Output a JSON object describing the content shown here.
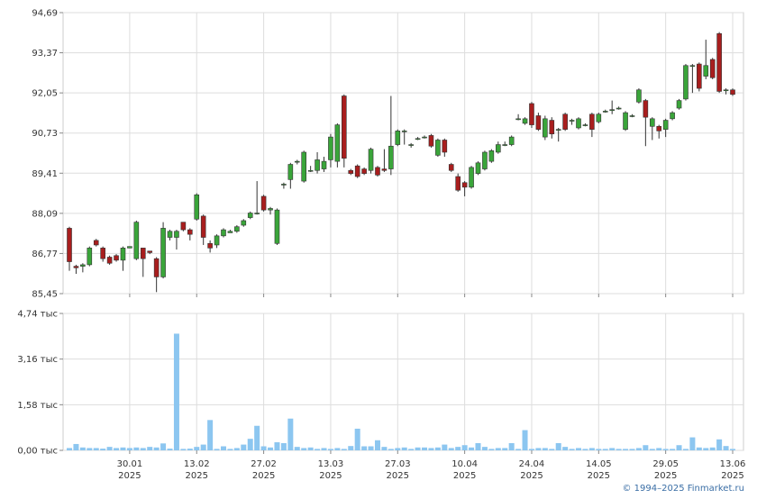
{
  "chart_data": [
    {
      "type": "candlestick",
      "categories": [
        null,
        null,
        null,
        null,
        null,
        null,
        null,
        null,
        null,
        "30.01\n2025",
        null,
        null,
        null,
        null,
        null,
        null,
        null,
        null,
        null,
        "13.02\n2025",
        null,
        null,
        null,
        null,
        null,
        null,
        null,
        null,
        null,
        "27.02\n2025",
        null,
        null,
        null,
        null,
        null,
        null,
        null,
        null,
        null,
        "13.03\n2025",
        null,
        null,
        null,
        null,
        null,
        null,
        null,
        null,
        null,
        "27.03\n2025",
        null,
        null,
        null,
        null,
        null,
        null,
        null,
        null,
        null,
        "10.04\n2025",
        null,
        null,
        null,
        null,
        null,
        null,
        null,
        null,
        null,
        "24.04\n2025",
        null,
        null,
        null,
        null,
        null,
        null,
        null,
        null,
        null,
        "14.05\n2025",
        null,
        null,
        null,
        null,
        null,
        null,
        null,
        null,
        null,
        "29.05\n2025",
        null,
        null,
        null,
        null,
        null,
        null,
        null,
        null,
        null,
        "13.06\n2025"
      ],
      "open": [
        87.6,
        86.35,
        86.35,
        86.4,
        87.2,
        86.95,
        86.65,
        86.7,
        86.55,
        86.95,
        86.6,
        86.95,
        86.85,
        86.6,
        86.0,
        87.3,
        87.3,
        87.8,
        87.55,
        87.9,
        88.0,
        87.1,
        87.05,
        87.35,
        87.45,
        87.5,
        87.7,
        87.95,
        88.1,
        88.65,
        88.2,
        87.1,
        89.05,
        89.2,
        89.8,
        89.15,
        89.5,
        89.5,
        89.55,
        89.85,
        89.8,
        91.95,
        89.5,
        89.65,
        89.55,
        89.5,
        89.6,
        89.55,
        89.55,
        90.35,
        90.8,
        90.35,
        90.55,
        90.6,
        90.65,
        90.0,
        90.5,
        89.7,
        89.3,
        89.1,
        88.95,
        89.4,
        89.55,
        89.8,
        90.1,
        90.35,
        90.35,
        91.2,
        91.05,
        91.7,
        91.3,
        90.6,
        91.15,
        90.85,
        91.35,
        91.15,
        90.9,
        91.0,
        91.35,
        91.1,
        91.45,
        91.5,
        91.55,
        90.85,
        91.3,
        91.75,
        91.8,
        90.95,
        90.95,
        90.85,
        91.2,
        91.55,
        91.85,
        92.95,
        93.0,
        92.6,
        93.15,
        94.0,
        92.15,
        92.15
      ],
      "high": [
        87.65,
        86.4,
        86.45,
        87.0,
        87.25,
        87.0,
        86.7,
        86.75,
        87.0,
        87.0,
        87.85,
        86.95,
        86.85,
        86.65,
        87.8,
        87.55,
        87.55,
        87.8,
        87.6,
        88.75,
        88.05,
        87.2,
        87.4,
        87.6,
        87.55,
        87.7,
        87.9,
        88.15,
        89.15,
        88.7,
        88.3,
        88.25,
        89.1,
        89.75,
        89.85,
        90.15,
        89.65,
        90.1,
        89.95,
        90.7,
        91.05,
        92.0,
        89.55,
        89.7,
        89.6,
        90.25,
        89.65,
        90.2,
        91.95,
        90.85,
        90.85,
        90.4,
        90.6,
        90.65,
        90.7,
        90.55,
        90.55,
        89.75,
        89.4,
        89.15,
        89.65,
        89.8,
        90.15,
        90.2,
        90.45,
        90.45,
        90.65,
        91.35,
        91.25,
        91.75,
        91.4,
        91.3,
        91.25,
        90.9,
        91.4,
        91.2,
        91.25,
        91.05,
        91.4,
        91.4,
        91.5,
        91.8,
        91.6,
        91.45,
        91.35,
        92.2,
        91.85,
        91.25,
        91.0,
        91.2,
        91.45,
        91.85,
        93.0,
        93.0,
        93.05,
        93.8,
        93.2,
        94.05,
        92.2,
        92.2
      ],
      "low": [
        86.2,
        86.1,
        86.15,
        86.35,
        87.0,
        86.5,
        86.4,
        86.5,
        86.2,
        86.95,
        86.55,
        86.0,
        86.75,
        85.5,
        85.95,
        87.2,
        86.9,
        87.5,
        87.2,
        87.85,
        87.05,
        86.8,
        86.95,
        87.3,
        87.45,
        87.45,
        87.65,
        87.9,
        88.05,
        88.15,
        88.05,
        87.05,
        88.9,
        88.9,
        89.7,
        89.1,
        89.45,
        89.4,
        89.45,
        89.6,
        89.6,
        89.6,
        89.35,
        89.25,
        89.35,
        89.4,
        89.3,
        89.45,
        89.35,
        90.3,
        90.35,
        90.25,
        90.5,
        90.55,
        90.25,
        89.95,
        89.95,
        89.45,
        88.8,
        88.65,
        88.9,
        89.35,
        89.5,
        89.75,
        90.05,
        90.3,
        90.3,
        91.15,
        91.0,
        90.9,
        90.8,
        90.5,
        90.55,
        90.45,
        90.8,
        91.0,
        90.85,
        90.95,
        90.6,
        91.05,
        91.4,
        91.35,
        91.5,
        90.8,
        91.25,
        91.7,
        90.3,
        90.5,
        90.55,
        90.6,
        91.15,
        91.5,
        91.8,
        92.05,
        92.1,
        92.5,
        92.5,
        92.05,
        92.0,
        91.95
      ],
      "close": [
        86.5,
        86.3,
        86.4,
        86.95,
        87.05,
        86.6,
        86.45,
        86.55,
        86.95,
        87.0,
        87.8,
        86.6,
        86.8,
        86.0,
        87.6,
        87.5,
        87.5,
        87.55,
        87.4,
        88.7,
        87.3,
        86.95,
        87.35,
        87.55,
        87.5,
        87.65,
        87.85,
        88.1,
        88.1,
        88.2,
        88.25,
        88.2,
        89.05,
        89.7,
        89.8,
        90.1,
        89.5,
        89.85,
        89.8,
        90.6,
        91.0,
        89.9,
        89.4,
        89.3,
        89.4,
        90.2,
        89.35,
        89.5,
        90.3,
        90.8,
        90.8,
        90.35,
        90.55,
        90.6,
        90.3,
        90.5,
        90.1,
        89.5,
        88.85,
        88.95,
        89.6,
        89.75,
        90.1,
        90.15,
        90.35,
        90.35,
        90.6,
        91.2,
        91.2,
        91.0,
        90.85,
        91.2,
        90.7,
        90.85,
        90.85,
        91.15,
        91.2,
        91.0,
        90.85,
        91.35,
        91.45,
        91.5,
        91.55,
        91.4,
        91.3,
        92.15,
        91.25,
        91.2,
        90.8,
        91.15,
        91.4,
        91.8,
        92.95,
        92.95,
        92.2,
        92.95,
        92.55,
        92.1,
        92.15,
        92.0
      ],
      "up_color": "#3aa53a",
      "down_color": "#a81e1e",
      "edge_color": "#333333",
      "ylim": [
        85.45,
        94.69
      ],
      "yticks": [
        {
          "value": 85.45,
          "label": "85,45"
        },
        {
          "value": 86.77,
          "label": "86,77"
        },
        {
          "value": 88.09,
          "label": "88,09"
        },
        {
          "value": 89.41,
          "label": "89,41"
        },
        {
          "value": 90.73,
          "label": "90,73"
        },
        {
          "value": 92.05,
          "label": "92,05"
        },
        {
          "value": 93.37,
          "label": "93,37"
        },
        {
          "value": 94.69,
          "label": "94,69"
        }
      ],
      "grid": true
    },
    {
      "type": "bar",
      "values": [
        0.08,
        0.22,
        0.1,
        0.08,
        0.08,
        0.06,
        0.12,
        0.08,
        0.1,
        0.08,
        0.1,
        0.08,
        0.12,
        0.1,
        0.24,
        0.06,
        4.04,
        0.05,
        0.06,
        0.12,
        0.2,
        1.05,
        0.05,
        0.14,
        0.05,
        0.08,
        0.2,
        0.4,
        0.85,
        0.14,
        0.1,
        0.28,
        0.25,
        1.1,
        0.12,
        0.08,
        0.1,
        0.05,
        0.08,
        0.05,
        0.08,
        0.05,
        0.15,
        0.75,
        0.14,
        0.14,
        0.35,
        0.12,
        0.05,
        0.08,
        0.1,
        0.05,
        0.1,
        0.1,
        0.08,
        0.1,
        0.2,
        0.08,
        0.12,
        0.18,
        0.1,
        0.25,
        0.12,
        0.05,
        0.08,
        0.08,
        0.25,
        0.05,
        0.7,
        0.05,
        0.08,
        0.08,
        0.05,
        0.25,
        0.12,
        0.05,
        0.08,
        0.05,
        0.08,
        0.05,
        0.05,
        0.08,
        0.05,
        0.05,
        0.05,
        0.08,
        0.18,
        0.05,
        0.08,
        0.05,
        0.05,
        0.18,
        0.05,
        0.45,
        0.1,
        0.08,
        0.1,
        0.38,
        0.15,
        0.05
      ],
      "color": "#8cc6f0",
      "ylim": [
        0,
        4.74
      ],
      "yticks": [
        {
          "value": 0,
          "label": "0,00 тыс"
        },
        {
          "value": 1.58,
          "label": "1,58 тыс"
        },
        {
          "value": 3.16,
          "label": "3,16 тыс"
        },
        {
          "value": 4.74,
          "label": "4,74 тыс"
        }
      ],
      "grid": true
    }
  ],
  "footer": "© 1994–2025 Finmarket.ru"
}
